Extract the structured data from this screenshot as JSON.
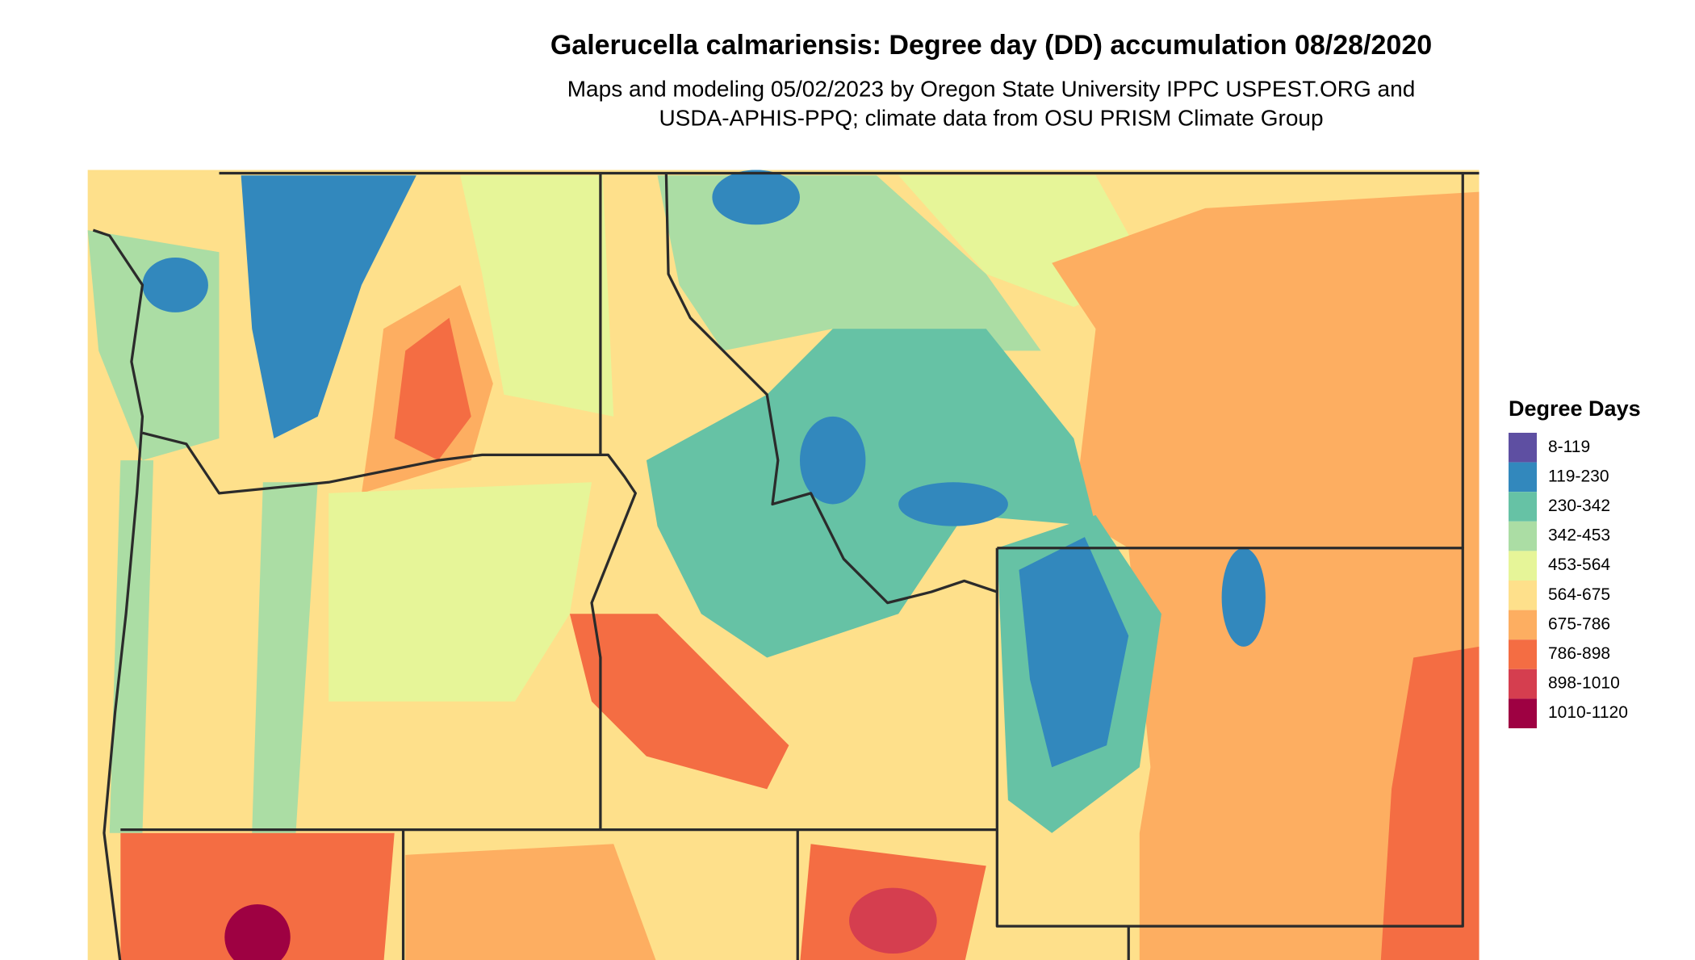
{
  "header": {
    "title": "Galerucella calmariensis: Degree day (DD) accumulation 08/28/2020",
    "subtitle": [
      "Maps and modeling 05/02/2023 by Oregon State University IPPC USPEST.ORG and",
      "USDA-APHIS-PPQ; climate data from OSU PRISM Climate Group"
    ]
  },
  "legend": {
    "title": "Degree Days",
    "items": [
      {
        "label": "8-119",
        "color": "#5e4fa2"
      },
      {
        "label": "119-230",
        "color": "#3288bd"
      },
      {
        "label": "230-342",
        "color": "#66c2a5"
      },
      {
        "label": "342-453",
        "color": "#abdda4"
      },
      {
        "label": "453-564",
        "color": "#e6f598"
      },
      {
        "label": "564-675",
        "color": "#fee08b"
      },
      {
        "label": "675-786",
        "color": "#fdae61"
      },
      {
        "label": "786-898",
        "color": "#f46d43"
      },
      {
        "label": "898-1010",
        "color": "#d53e4f"
      },
      {
        "label": "1010-1120",
        "color": "#9e0142"
      }
    ]
  }
}
